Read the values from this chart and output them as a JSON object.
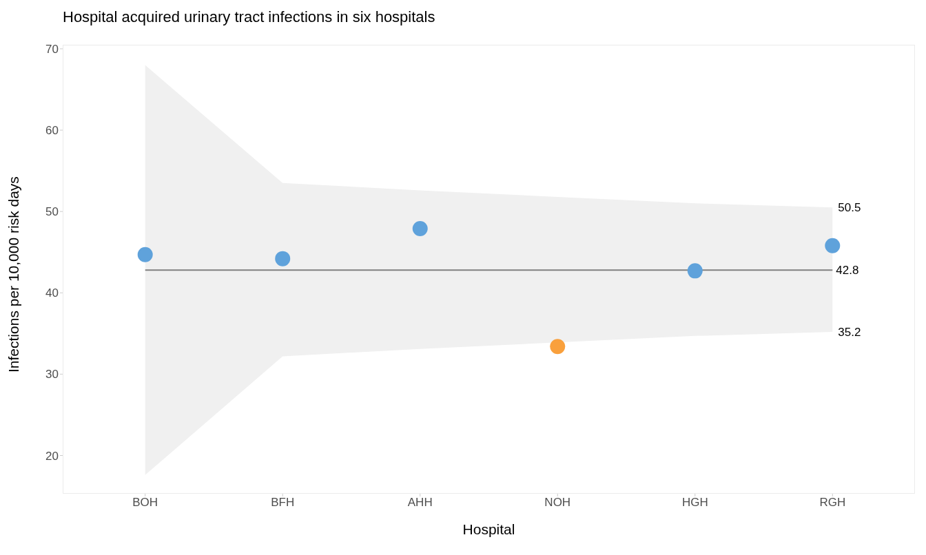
{
  "chart_data": {
    "type": "scatter",
    "title": "Hospital acquired urinary tract infections in six hospitals",
    "xlabel": "Hospital",
    "ylabel": "Infections per 10,000 risk days",
    "categories": [
      "BOH",
      "BFH",
      "AHH",
      "NOH",
      "HGH",
      "RGH"
    ],
    "series": [
      {
        "type": "area",
        "color": "#f0f0f0",
        "values": [
          null,
          null,
          null,
          null,
          null,
          null
        ],
        "lower": [
          17.6,
          32.2,
          33.1,
          33.9,
          34.7,
          35.2
        ],
        "upper": [
          68.0,
          53.5,
          52.6,
          51.8,
          51.0,
          50.5
        ]
      },
      {
        "values": [
          44.7,
          44.2,
          47.9,
          33.4,
          42.7,
          45.8
        ],
        "colors": [
          "#5fa2db",
          "#5fa2db",
          "#5fa2db",
          "#f9a03c",
          "#5fa2db",
          "#5fa2db"
        ]
      }
    ],
    "marker": "circle",
    "ylim": [
      15.3,
      70.5
    ],
    "yticks": [
      20,
      30,
      40,
      50,
      60,
      70
    ],
    "ref_lines": [
      {
        "axis": "y",
        "value": 42.8,
        "label": "42.8",
        "color": "#808080"
      }
    ],
    "annotations": [
      {
        "text": "50.5",
        "x": "RGH",
        "y": 50.5
      },
      {
        "text": "35.2",
        "x": "RGH",
        "y": 35.2
      }
    ]
  }
}
